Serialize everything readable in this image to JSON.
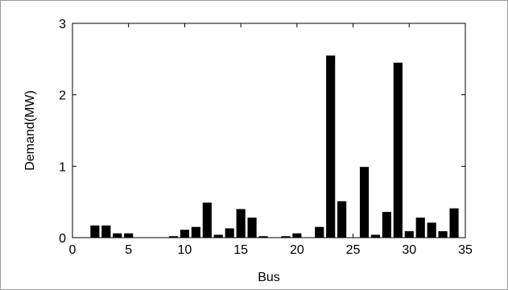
{
  "chart_data": {
    "type": "bar",
    "title": "",
    "xlabel": "Bus",
    "ylabel": "Demand(MW)",
    "xlim": [
      0,
      35
    ],
    "ylim": [
      0,
      3
    ],
    "xticks": [
      0,
      5,
      10,
      15,
      20,
      25,
      30,
      35
    ],
    "yticks": [
      0,
      1,
      2,
      3
    ],
    "xtick_labels": [
      "0",
      "5",
      "10",
      "15",
      "20",
      "25",
      "30",
      "35"
    ],
    "ytick_labels": [
      "0",
      "1",
      "2",
      "3"
    ],
    "grid": false,
    "colors": {
      "bar": "#000000",
      "axis": "#000000"
    },
    "x": [
      2,
      3,
      4,
      5,
      6,
      7,
      8,
      9,
      10,
      11,
      12,
      13,
      14,
      15,
      16,
      17,
      18,
      19,
      20,
      21,
      22,
      23,
      24,
      25,
      26,
      27,
      28,
      29,
      30,
      31,
      32,
      33,
      34
    ],
    "values": [
      0.17,
      0.17,
      0.06,
      0.06,
      0.0,
      0.0,
      0.0,
      0.02,
      0.11,
      0.15,
      0.49,
      0.04,
      0.13,
      0.4,
      0.28,
      0.02,
      0.0,
      0.02,
      0.06,
      0.0,
      0.15,
      2.55,
      0.51,
      0.0,
      0.99,
      0.04,
      0.36,
      2.45,
      0.09,
      0.28,
      0.21,
      0.09,
      0.41
    ]
  }
}
